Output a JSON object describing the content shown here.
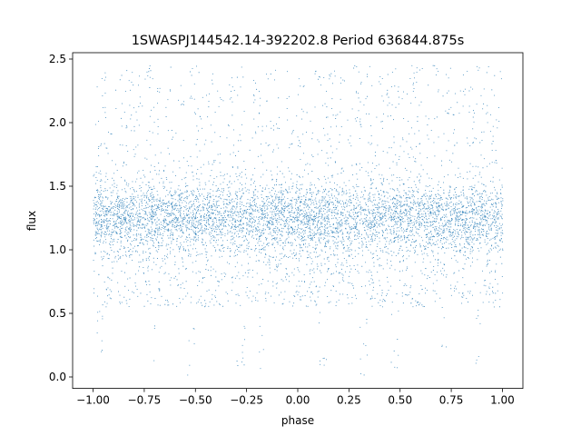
{
  "chart_data": {
    "type": "scatter",
    "title": "1SWASPJ144542.14-392202.8 Period 636844.875s",
    "xlabel": "phase",
    "ylabel": "flux",
    "xlim": [
      -1.1,
      1.1
    ],
    "ylim": [
      -0.09,
      2.55
    ],
    "xticks": [
      -1.0,
      -0.75,
      -0.5,
      -0.25,
      0.0,
      0.25,
      0.5,
      0.75,
      1.0
    ],
    "xtick_labels": [
      "−1.00",
      "−0.75",
      "−0.50",
      "−0.25",
      "0.00",
      "0.25",
      "0.50",
      "0.75",
      "1.00"
    ],
    "yticks": [
      0.0,
      0.5,
      1.0,
      1.5,
      2.0,
      2.5
    ],
    "ytick_labels": [
      "0.0",
      "0.5",
      "1.0",
      "1.5",
      "2.0",
      "2.5"
    ],
    "grid": false,
    "series": [
      {
        "color": "#1f77b4",
        "x_range": [
          -1.0,
          1.0
        ],
        "y_median": 1.25,
        "y_core_range": [
          0.9,
          1.55
        ],
        "y_full_range": [
          0.0,
          2.45
        ],
        "phase_folded": true
      }
    ]
  }
}
